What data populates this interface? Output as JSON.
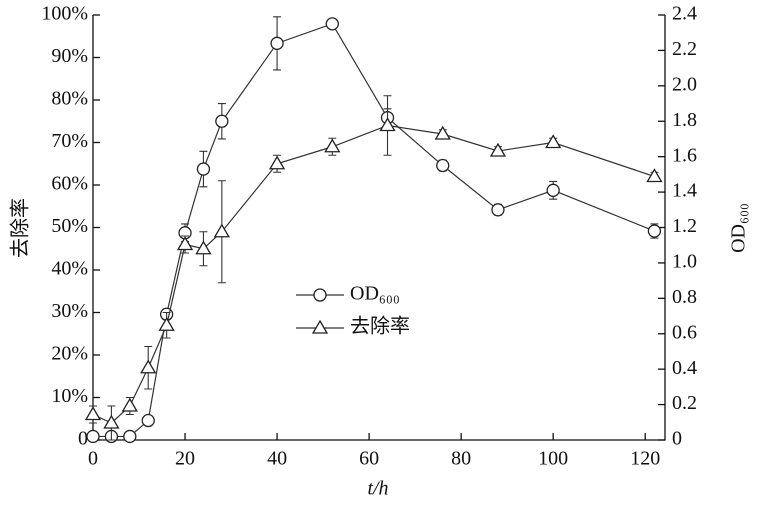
{
  "chart_data": {
    "type": "line",
    "x_label": "t/h",
    "y_label": "去除率",
    "y2_label": "OD₆₀₀",
    "x": [
      0,
      4,
      8,
      12,
      16,
      20,
      24,
      28,
      40,
      52,
      64,
      76,
      88,
      100,
      122
    ],
    "xlim": [
      0,
      124.3
    ],
    "xticks": [
      0,
      20,
      40,
      60,
      80,
      100,
      120
    ],
    "ylim": [
      0,
      100
    ],
    "yticks": [
      0,
      {
        "value": 10,
        "label": "10%"
      },
      {
        "value": 20,
        "label": "20%"
      },
      {
        "value": 30,
        "label": "30%"
      },
      {
        "value": 40,
        "label": "40%"
      },
      {
        "value": 50,
        "label": "50%"
      },
      {
        "value": 60,
        "label": "60%"
      },
      {
        "value": 70,
        "label": "70%"
      },
      {
        "value": 80,
        "label": "80%"
      },
      {
        "value": 90,
        "label": "90%"
      },
      {
        "value": 100,
        "label": "100%"
      }
    ],
    "y2lim": [
      0,
      2.4
    ],
    "y2ticks": [
      0,
      0.2,
      0.4,
      0.6,
      0.8,
      {
        "value": 1,
        "label": "1.0"
      },
      1.2,
      1.4,
      1.6,
      1.8,
      {
        "value": 2,
        "label": "2.0"
      },
      2.2,
      2.4
    ],
    "series": [
      {
        "name": "OD₆₀₀",
        "marker": "circle",
        "axis": "y2",
        "color": "#333333",
        "values": [
          0.02,
          0.02,
          0.02,
          0.11,
          0.71,
          1.17,
          1.53,
          1.8,
          2.24,
          2.35,
          1.82,
          1.55,
          1.3,
          1.41,
          1.18
        ],
        "errors": [
          0.01,
          0.01,
          0.01,
          0.02,
          0.03,
          0.05,
          0.1,
          0.1,
          0.15,
          0.02,
          0.05,
          0.03,
          0.03,
          0.05,
          0.04
        ]
      },
      {
        "name": "去除率",
        "marker": "triangle",
        "color": "#333333",
        "values": [
          6,
          4,
          8,
          17,
          27,
          46,
          45,
          49,
          65,
          69,
          74,
          72,
          68,
          70,
          62
        ],
        "errors": [
          2,
          4,
          2,
          5,
          3,
          2,
          4,
          12,
          2,
          2,
          7,
          1,
          1,
          1,
          1
        ]
      }
    ]
  }
}
